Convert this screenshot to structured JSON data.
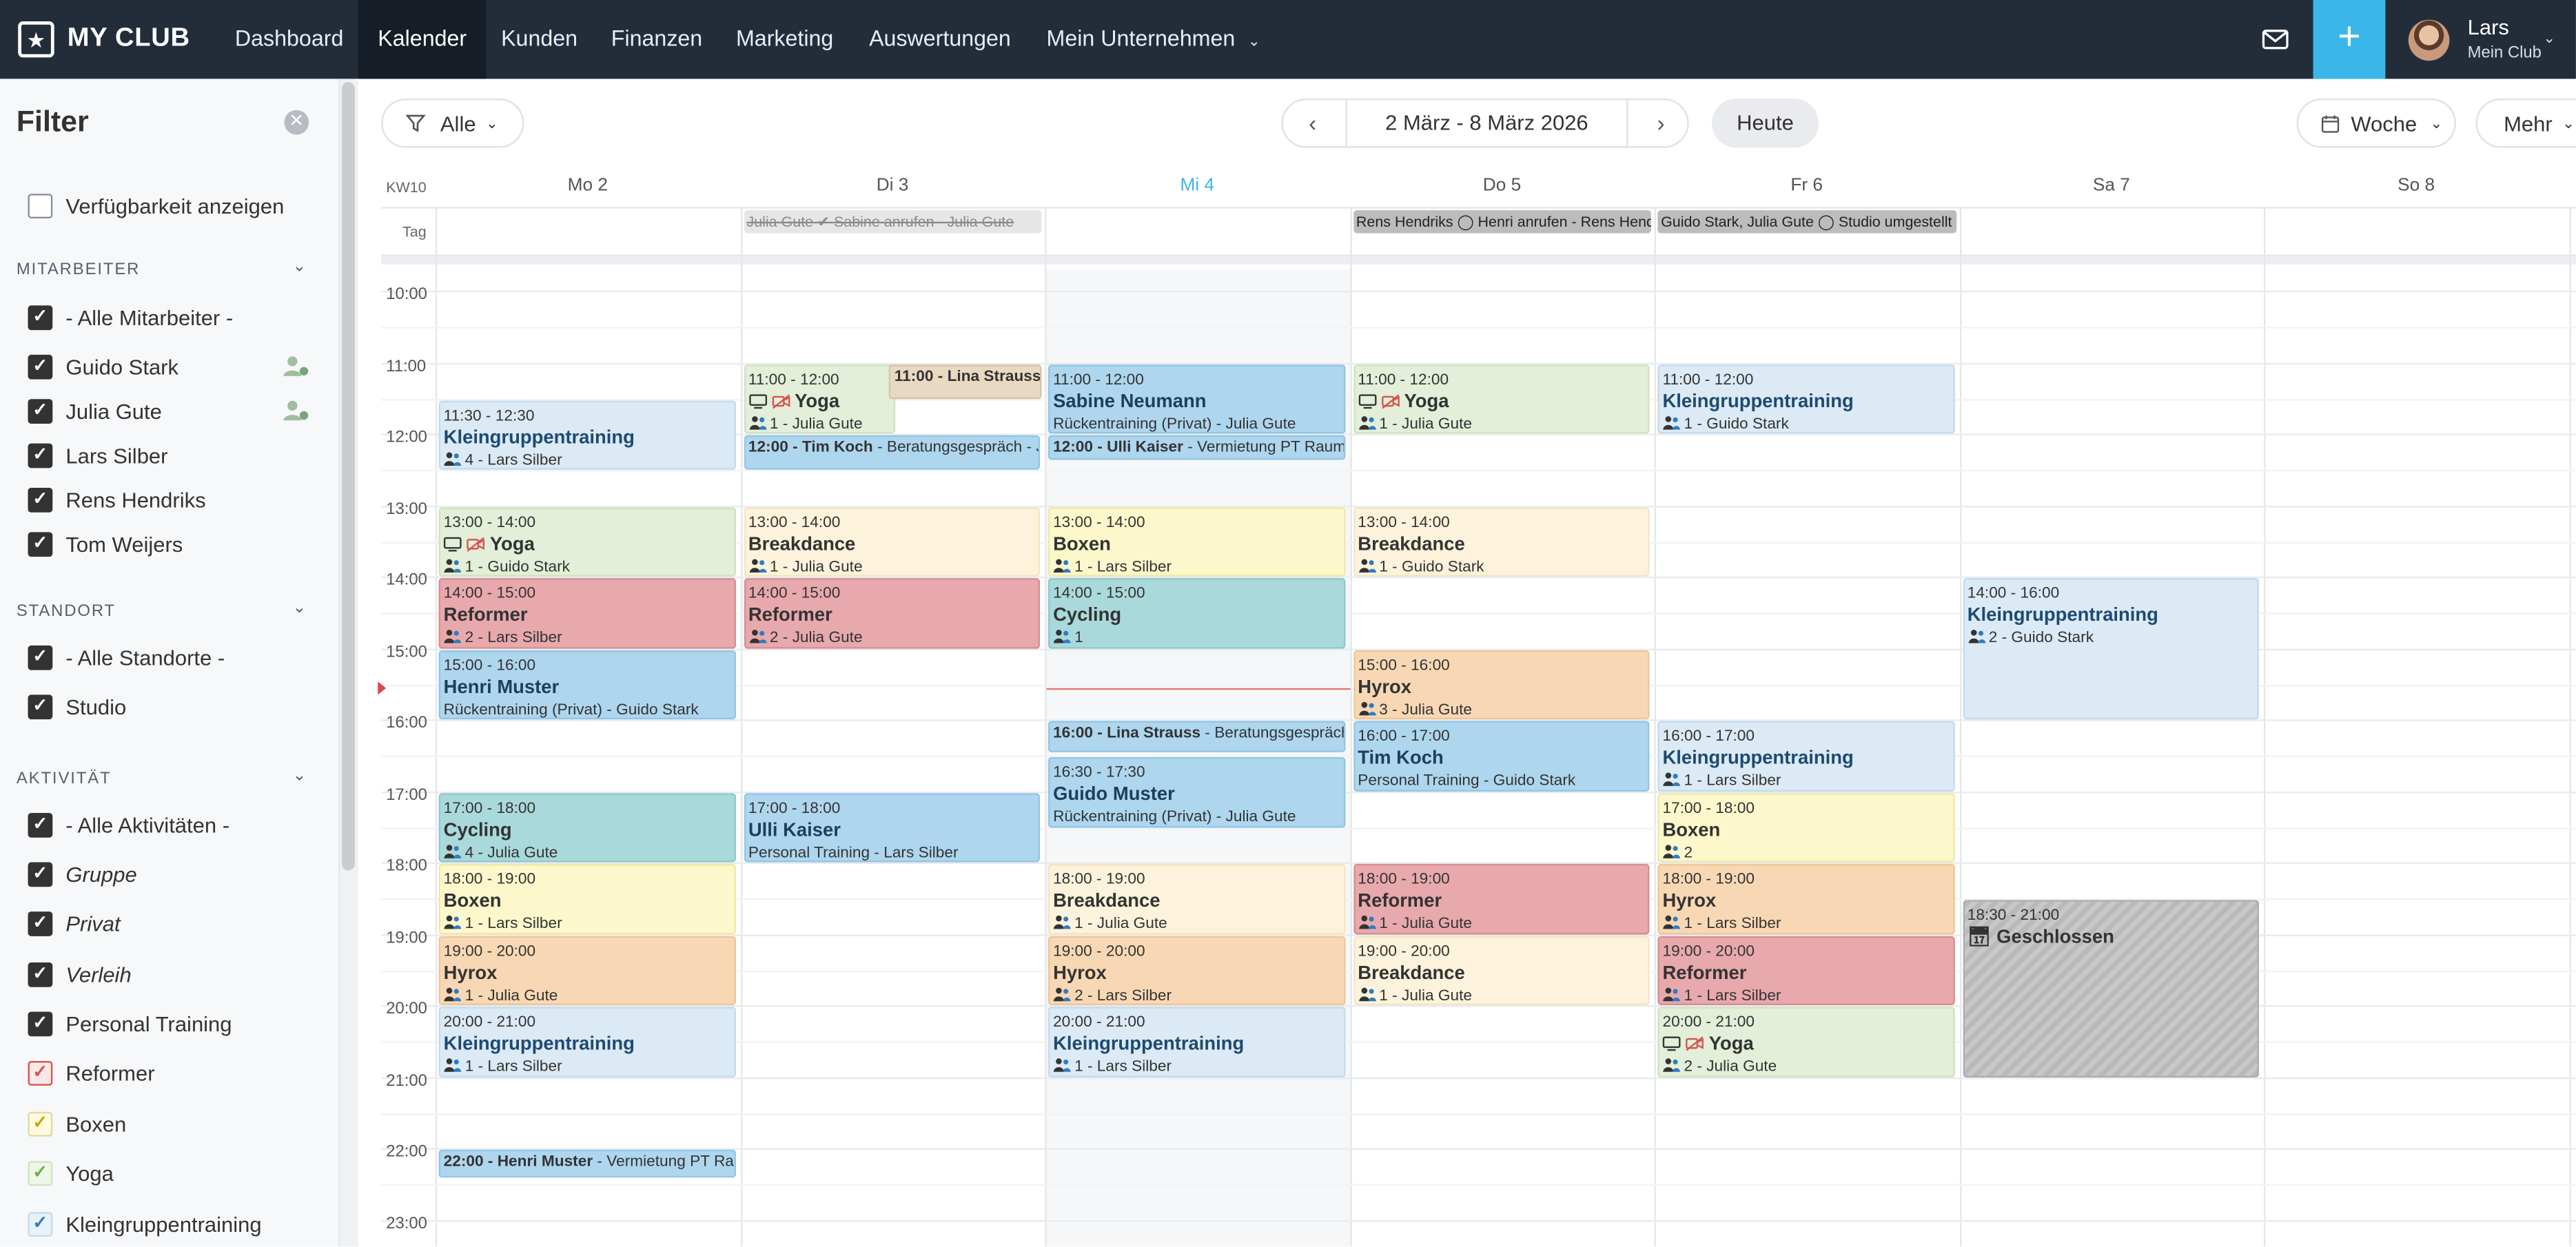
{
  "brand": {
    "name": "MY CLUB",
    "icon": "star-icon"
  },
  "nav": {
    "items": [
      "Dashboard",
      "Kalender",
      "Kunden",
      "Finanzen",
      "Marketing",
      "Auswertungen",
      "Mein Unternehmen"
    ],
    "active": "Kalender"
  },
  "user": {
    "name": "Lars",
    "club": "Mein Club"
  },
  "sidebar": {
    "title": "Filter",
    "availability": "Verfügbarkeit anzeigen",
    "staff_heading": "MITARBEITER",
    "staff": [
      "- Alle Mitarbeiter -",
      "Guido Stark",
      "Julia Gute",
      "Lars Silber",
      "Rens Hendriks",
      "Tom Weijers"
    ],
    "location_heading": "STANDORT",
    "locations": [
      "- Alle Standorte -",
      "Studio"
    ],
    "activity_heading": "AKTIVITÄT",
    "activities": [
      "- Alle Aktivitäten -",
      "Gruppe",
      "Privat",
      "Verleih",
      "Personal Training",
      "Reformer",
      "Boxen",
      "Yoga",
      "Kleingruppentraining"
    ],
    "activity_colors": {
      "Reformer": "#d9534f",
      "Boxen": "#e6c200",
      "Yoga": "#8dc26f",
      "Kleingruppentraining": "#3a8fd1"
    }
  },
  "toolbar": {
    "filter_label": "Alle",
    "date_range": "2 März - 8 März 2026",
    "today": "Heute",
    "view": "Woche",
    "more": "Mehr"
  },
  "calendar": {
    "week": "KW10",
    "days": [
      "Mo 2",
      "Di 3",
      "Mi 4",
      "Do 5",
      "Fr 6",
      "Sa 7",
      "So 8"
    ],
    "today_index": 2,
    "allday_label": "Tag",
    "allday": [
      {
        "day": 1,
        "text": "Julia Gute ✔ Sabine anrufen - Julia Gute"
      },
      {
        "day": 3,
        "text": "Rens Hendriks ◯ Henri anrufen - Rens Hendriks"
      },
      {
        "day": 4,
        "text": "Guido Stark, Julia Gute ◯ Studio umgestellt"
      }
    ],
    "hours": [
      "10:00",
      "11:00",
      "12:00",
      "13:00",
      "14:00",
      "15:00",
      "16:00",
      "17:00",
      "18:00",
      "19:00",
      "20:00",
      "21:00",
      "22:00",
      "23:00"
    ],
    "events": [
      {
        "day": 0,
        "start": 11.5,
        "end": 12.5,
        "time": "11:30 - 12:30",
        "title": "Kleingruppentraining",
        "meta": "4 - Lars Silber",
        "kind": "klein"
      },
      {
        "day": 0,
        "start": 13,
        "end": 14,
        "time": "13:00 - 14:00",
        "title": "Yoga",
        "meta": "1 - Guido Stark",
        "kind": "yoga",
        "online": true
      },
      {
        "day": 0,
        "start": 14,
        "end": 15,
        "time": "14:00 - 15:00",
        "title": "Reformer",
        "meta": "2 - Lars Silber",
        "kind": "ref"
      },
      {
        "day": 0,
        "start": 15,
        "end": 16,
        "time": "15:00 - 16:00",
        "title": "Henri Muster",
        "meta": "Rückentraining (Privat) - Guido Stark",
        "kind": "pt",
        "noicon": true
      },
      {
        "day": 0,
        "start": 17,
        "end": 18,
        "time": "17:00 - 18:00",
        "title": "Cycling",
        "meta": "4 - Julia Gute",
        "kind": "cyc"
      },
      {
        "day": 0,
        "start": 18,
        "end": 19,
        "time": "18:00 - 19:00",
        "title": "Boxen",
        "meta": "1 - Lars Silber",
        "kind": "box"
      },
      {
        "day": 0,
        "start": 19,
        "end": 20,
        "time": "19:00 - 20:00",
        "title": "Hyrox",
        "meta": "1 - Julia Gute",
        "kind": "hyr"
      },
      {
        "day": 0,
        "start": 20,
        "end": 21,
        "time": "20:00 - 21:00",
        "title": "Kleingruppentraining",
        "meta": "1 - Lars Silber",
        "kind": "klein"
      },
      {
        "day": 0,
        "start": 22,
        "end": 22.4,
        "oneline": "22:00 - Henri Muster",
        "sub": " - Vermietung PT Raum",
        "kind": "pt"
      },
      {
        "day": 1,
        "start": 11,
        "end": 12,
        "time": "11:00 - 12:00",
        "title": "Yoga",
        "meta": "1 - Julia Gute",
        "kind": "yoga",
        "online": true,
        "narrow": true
      },
      {
        "day": 1,
        "start": 11,
        "end": 11.5,
        "oneline": "11:00 - Lina Strauss",
        "sub": "",
        "kind": "lina",
        "right": true
      },
      {
        "day": 1,
        "start": 12,
        "end": 12.5,
        "oneline": "12:00 - Tim Koch",
        "sub": " - Beratungsgespräch - Julia Gute",
        "kind": "pt"
      },
      {
        "day": 1,
        "start": 13,
        "end": 14,
        "time": "13:00 - 14:00",
        "title": "Breakdance",
        "meta": "1 - Julia Gute",
        "kind": "break"
      },
      {
        "day": 1,
        "start": 14,
        "end": 15,
        "time": "14:00 - 15:00",
        "title": "Reformer",
        "meta": "2 - Julia Gute",
        "kind": "ref"
      },
      {
        "day": 1,
        "start": 17,
        "end": 18,
        "time": "17:00 - 18:00",
        "title": "Ulli Kaiser",
        "meta": "Personal Training - Lars Silber",
        "kind": "pt",
        "noicon": true
      },
      {
        "day": 2,
        "start": 11,
        "end": 12,
        "time": "11:00 - 12:00",
        "title": "Sabine Neumann",
        "meta": "Rückentraining (Privat) - Julia Gute",
        "kind": "pt",
        "noicon": true
      },
      {
        "day": 2,
        "start": 12,
        "end": 12.35,
        "oneline": "12:00 - Ulli Kaiser",
        "sub": " - Vermietung PT Raum",
        "kind": "pt"
      },
      {
        "day": 2,
        "start": 13,
        "end": 14,
        "time": "13:00 - 14:00",
        "title": "Boxen",
        "meta": "1 - Lars Silber",
        "kind": "box"
      },
      {
        "day": 2,
        "start": 14,
        "end": 15,
        "time": "14:00 - 15:00",
        "title": "Cycling",
        "meta": "1",
        "kind": "cyc"
      },
      {
        "day": 2,
        "start": 16,
        "end": 16.45,
        "oneline": "16:00 - Lina Strauss",
        "sub": " - Beratungsgespräch",
        "kind": "pt"
      },
      {
        "day": 2,
        "start": 16.5,
        "end": 17.5,
        "time": "16:30 - 17:30",
        "title": "Guido Muster",
        "meta": "Rückentraining (Privat) - Julia Gute",
        "kind": "pt",
        "noicon": true
      },
      {
        "day": 2,
        "start": 18,
        "end": 19,
        "time": "18:00 - 19:00",
        "title": "Breakdance",
        "meta": "1 - Julia Gute",
        "kind": "break"
      },
      {
        "day": 2,
        "start": 19,
        "end": 20,
        "time": "19:00 - 20:00",
        "title": "Hyrox",
        "meta": "2 - Lars Silber",
        "kind": "hyr"
      },
      {
        "day": 2,
        "start": 20,
        "end": 21,
        "time": "20:00 - 21:00",
        "title": "Kleingruppentraining",
        "meta": "1 - Lars Silber",
        "kind": "klein"
      },
      {
        "day": 3,
        "start": 11,
        "end": 12,
        "time": "11:00 - 12:00",
        "title": "Yoga",
        "meta": "1 - Julia Gute",
        "kind": "yoga",
        "online": true
      },
      {
        "day": 3,
        "start": 13,
        "end": 14,
        "time": "13:00 - 14:00",
        "title": "Breakdance",
        "meta": "1 - Guido Stark",
        "kind": "break"
      },
      {
        "day": 3,
        "start": 15,
        "end": 16,
        "time": "15:00 - 16:00",
        "title": "Hyrox",
        "meta": "3 - Julia Gute",
        "kind": "hyr"
      },
      {
        "day": 3,
        "start": 16,
        "end": 17,
        "time": "16:00 - 17:00",
        "title": "Tim Koch",
        "meta": "Personal Training - Guido Stark",
        "kind": "pt",
        "noicon": true
      },
      {
        "day": 3,
        "start": 18,
        "end": 19,
        "time": "18:00 - 19:00",
        "title": "Reformer",
        "meta": "1 - Julia Gute",
        "kind": "ref"
      },
      {
        "day": 3,
        "start": 19,
        "end": 20,
        "time": "19:00 - 20:00",
        "title": "Breakdance",
        "meta": "1 - Julia Gute",
        "kind": "break"
      },
      {
        "day": 4,
        "start": 11,
        "end": 12,
        "time": "11:00 - 12:00",
        "title": "Kleingruppentraining",
        "meta": "1 - Guido Stark",
        "kind": "klein"
      },
      {
        "day": 4,
        "start": 16,
        "end": 17,
        "time": "16:00 - 17:00",
        "title": "Kleingruppentraining",
        "meta": "1 - Lars Silber",
        "kind": "klein"
      },
      {
        "day": 4,
        "start": 17,
        "end": 18,
        "time": "17:00 - 18:00",
        "title": "Boxen",
        "meta": "2",
        "kind": "box"
      },
      {
        "day": 4,
        "start": 18,
        "end": 19,
        "time": "18:00 - 19:00",
        "title": "Hyrox",
        "meta": "1 - Lars Silber",
        "kind": "hyr"
      },
      {
        "day": 4,
        "start": 19,
        "end": 20,
        "time": "19:00 - 20:00",
        "title": "Reformer",
        "meta": "1 - Lars Silber",
        "kind": "ref"
      },
      {
        "day": 4,
        "start": 20,
        "end": 21,
        "time": "20:00 - 21:00",
        "title": "Yoga",
        "meta": "2 - Julia Gute",
        "kind": "yoga",
        "online": true
      },
      {
        "day": 5,
        "start": 14,
        "end": 16,
        "time": "14:00 - 16:00",
        "title": "Kleingruppentraining",
        "meta": "2 - Guido Stark",
        "kind": "klein"
      },
      {
        "day": 5,
        "start": 18.5,
        "end": 21,
        "time": "18:30 - 21:00",
        "title": "Geschlossen",
        "meta": "",
        "kind": "closed"
      }
    ]
  }
}
